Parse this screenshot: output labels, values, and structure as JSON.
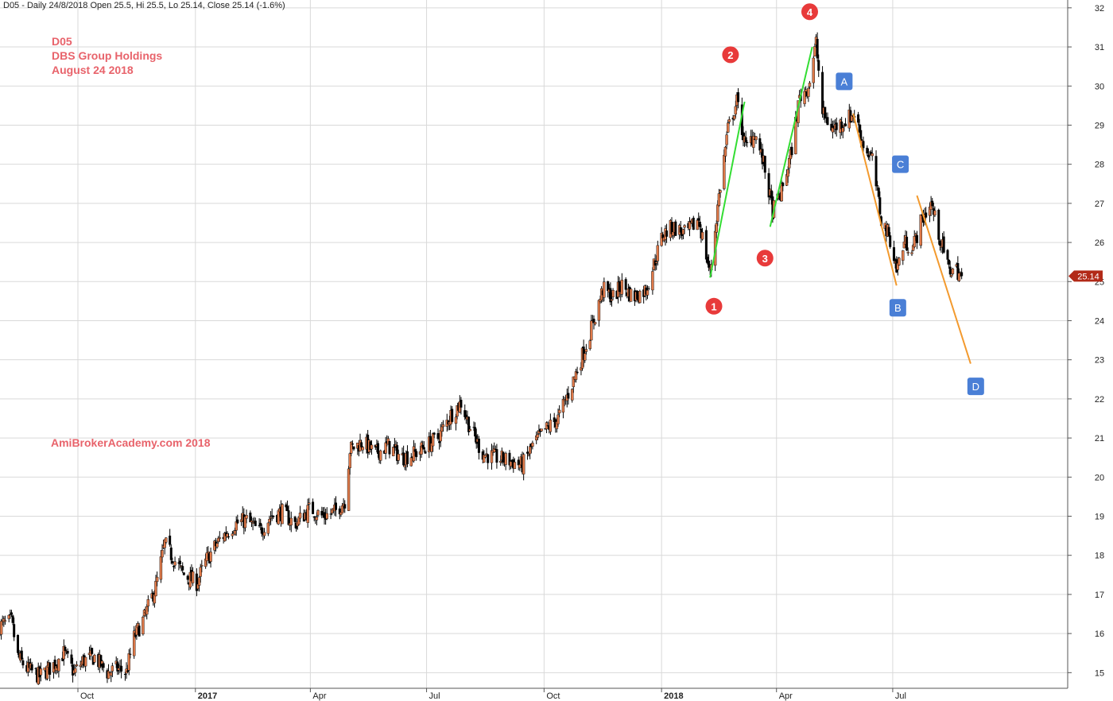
{
  "header": {
    "info": "D05 - Daily 24/8/2018 Open 25.5, Hi 25.5, Lo 25.14, Close 25.14 (-1.6%)"
  },
  "annotations": {
    "ticker": "D05",
    "company": "DBS Group Holdings",
    "date": "August 24 2018",
    "watermark": "AmiBrokerAcademy.com  2018"
  },
  "colors": {
    "up": "#e07a4a",
    "down": "#000000",
    "grid": "#d9d9d9",
    "text_accent": "#e8636b",
    "green_line": "#33dd33",
    "orange_line": "#f39a2e",
    "red_marker": "#e83a3a",
    "blue_marker": "#4a7fd6",
    "price_tag": "#b22a18"
  },
  "chart_data": {
    "type": "candlestick",
    "ylim": [
      14.6,
      32.2
    ],
    "y_ticks": [
      15,
      16,
      17,
      18,
      19,
      20,
      21,
      22,
      23,
      24,
      25,
      26,
      27,
      28,
      29,
      30,
      31,
      32
    ],
    "x_ticks": [
      {
        "label": "Oct",
        "date": "2016-10-01",
        "bold": false
      },
      {
        "label": "2017",
        "date": "2017-01-01",
        "bold": true
      },
      {
        "label": "Apr",
        "date": "2017-04-01",
        "bold": false
      },
      {
        "label": "Jul",
        "date": "2017-07-01",
        "bold": false
      },
      {
        "label": "Oct",
        "date": "2017-10-01",
        "bold": false
      },
      {
        "label": "2018",
        "date": "2018-01-01",
        "bold": true
      },
      {
        "label": "Apr",
        "date": "2018-04-01",
        "bold": false
      },
      {
        "label": "Jul",
        "date": "2018-07-01",
        "bold": false
      }
    ],
    "x_range": [
      "2016-08-01",
      "2018-11-15"
    ],
    "last_price": 25.14,
    "last_price_label": "25.14",
    "close_path": [
      [
        "2016-08-01",
        16.2
      ],
      [
        "2016-08-10",
        16.3
      ],
      [
        "2016-08-15",
        15.4
      ],
      [
        "2016-08-22",
        15.1
      ],
      [
        "2016-09-01",
        14.9
      ],
      [
        "2016-09-12",
        15.2
      ],
      [
        "2016-09-20",
        15.5
      ],
      [
        "2016-09-28",
        15.0
      ],
      [
        "2016-10-05",
        15.3
      ],
      [
        "2016-10-14",
        15.4
      ],
      [
        "2016-10-24",
        15.0
      ],
      [
        "2016-11-01",
        15.1
      ],
      [
        "2016-11-08",
        15.0
      ],
      [
        "2016-11-14",
        15.9
      ],
      [
        "2016-11-22",
        16.4
      ],
      [
        "2016-12-01",
        17.2
      ],
      [
        "2016-12-08",
        18.3
      ],
      [
        "2016-12-15",
        17.9
      ],
      [
        "2016-12-23",
        17.5
      ],
      [
        "2017-01-02",
        17.3
      ],
      [
        "2017-01-10",
        17.9
      ],
      [
        "2017-01-20",
        18.4
      ],
      [
        "2017-02-01",
        18.8
      ],
      [
        "2017-02-10",
        18.9
      ],
      [
        "2017-02-20",
        18.6
      ],
      [
        "2017-03-01",
        19.0
      ],
      [
        "2017-03-10",
        19.1
      ],
      [
        "2017-03-20",
        18.8
      ],
      [
        "2017-04-01",
        19.2
      ],
      [
        "2017-04-10",
        19.0
      ],
      [
        "2017-04-20",
        19.1
      ],
      [
        "2017-04-28",
        19.4
      ],
      [
        "2017-05-02",
        20.7
      ],
      [
        "2017-05-12",
        20.9
      ],
      [
        "2017-05-22",
        20.6
      ],
      [
        "2017-06-01",
        20.8
      ],
      [
        "2017-06-12",
        20.5
      ],
      [
        "2017-06-22",
        20.6
      ],
      [
        "2017-07-01",
        20.8
      ],
      [
        "2017-07-10",
        21.0
      ],
      [
        "2017-07-20",
        21.6
      ],
      [
        "2017-07-28",
        21.9
      ],
      [
        "2017-08-05",
        21.2
      ],
      [
        "2017-08-14",
        20.6
      ],
      [
        "2017-08-24",
        20.5
      ],
      [
        "2017-09-05",
        20.4
      ],
      [
        "2017-09-14",
        20.3
      ],
      [
        "2017-09-22",
        20.8
      ],
      [
        "2017-10-02",
        21.2
      ],
      [
        "2017-10-12",
        21.5
      ],
      [
        "2017-10-22",
        22.3
      ],
      [
        "2017-11-01",
        23.2
      ],
      [
        "2017-11-08",
        23.9
      ],
      [
        "2017-11-16",
        24.8
      ],
      [
        "2017-11-24",
        24.6
      ],
      [
        "2017-12-01",
        24.9
      ],
      [
        "2017-12-10",
        24.6
      ],
      [
        "2017-12-20",
        24.8
      ],
      [
        "2018-01-02",
        26.2
      ],
      [
        "2018-01-10",
        26.4
      ],
      [
        "2018-01-20",
        26.2
      ],
      [
        "2018-01-30",
        26.6
      ],
      [
        "2018-02-08",
        25.2
      ],
      [
        "2018-02-15",
        27.2
      ],
      [
        "2018-02-22",
        28.9
      ],
      [
        "2018-03-01",
        29.6
      ],
      [
        "2018-03-08",
        28.4
      ],
      [
        "2018-03-15",
        28.8
      ],
      [
        "2018-03-22",
        28.0
      ],
      [
        "2018-03-29",
        26.8
      ],
      [
        "2018-04-05",
        27.3
      ],
      [
        "2018-04-12",
        28.2
      ],
      [
        "2018-04-19",
        29.7
      ],
      [
        "2018-04-26",
        30.0
      ],
      [
        "2018-05-02",
        31.1
      ],
      [
        "2018-05-07",
        29.3
      ],
      [
        "2018-05-15",
        28.9
      ],
      [
        "2018-05-24",
        29.1
      ],
      [
        "2018-06-01",
        29.3
      ],
      [
        "2018-06-08",
        28.5
      ],
      [
        "2018-06-15",
        28.1
      ],
      [
        "2018-06-22",
        26.6
      ],
      [
        "2018-06-29",
        26.1
      ],
      [
        "2018-07-04",
        25.3
      ],
      [
        "2018-07-10",
        26.0
      ],
      [
        "2018-07-17",
        25.9
      ],
      [
        "2018-07-24",
        26.6
      ],
      [
        "2018-07-31",
        27.0
      ],
      [
        "2018-08-07",
        26.1
      ],
      [
        "2018-08-14",
        25.3
      ],
      [
        "2018-08-20",
        25.3
      ],
      [
        "2018-08-24",
        25.14
      ]
    ],
    "trend_lines": [
      {
        "color": "green",
        "from": [
          "2018-02-08",
          25.1
        ],
        "to": [
          "2018-03-07",
          29.6
        ]
      },
      {
        "color": "green",
        "from": [
          "2018-03-27",
          26.4
        ],
        "to": [
          "2018-04-29",
          31.0
        ]
      },
      {
        "color": "orange",
        "from": [
          "2018-05-31",
          29.3
        ],
        "to": [
          "2018-07-04",
          24.9
        ]
      },
      {
        "color": "orange",
        "from": [
          "2018-07-20",
          27.2
        ],
        "to": [
          "2018-08-31",
          22.9
        ]
      }
    ],
    "markers": [
      {
        "label": "1",
        "shape": "circle",
        "color": "red",
        "date": "2018-02-11",
        "y": 24.37
      },
      {
        "label": "2",
        "shape": "circle",
        "color": "red",
        "date": "2018-02-24",
        "y": 30.8
      },
      {
        "label": "3",
        "shape": "circle",
        "color": "red",
        "date": "2018-03-23",
        "y": 25.6
      },
      {
        "label": "4",
        "shape": "circle",
        "color": "red",
        "date": "2018-04-27",
        "y": 31.9
      },
      {
        "label": "A",
        "shape": "square",
        "color": "blue",
        "date": "2018-05-24",
        "y": 30.12
      },
      {
        "label": "B",
        "shape": "square",
        "color": "blue",
        "date": "2018-07-05",
        "y": 24.33
      },
      {
        "label": "C",
        "shape": "square",
        "color": "blue",
        "date": "2018-07-07",
        "y": 28.0
      },
      {
        "label": "D",
        "shape": "square",
        "color": "blue",
        "date": "2018-09-04",
        "y": 22.32
      }
    ]
  }
}
